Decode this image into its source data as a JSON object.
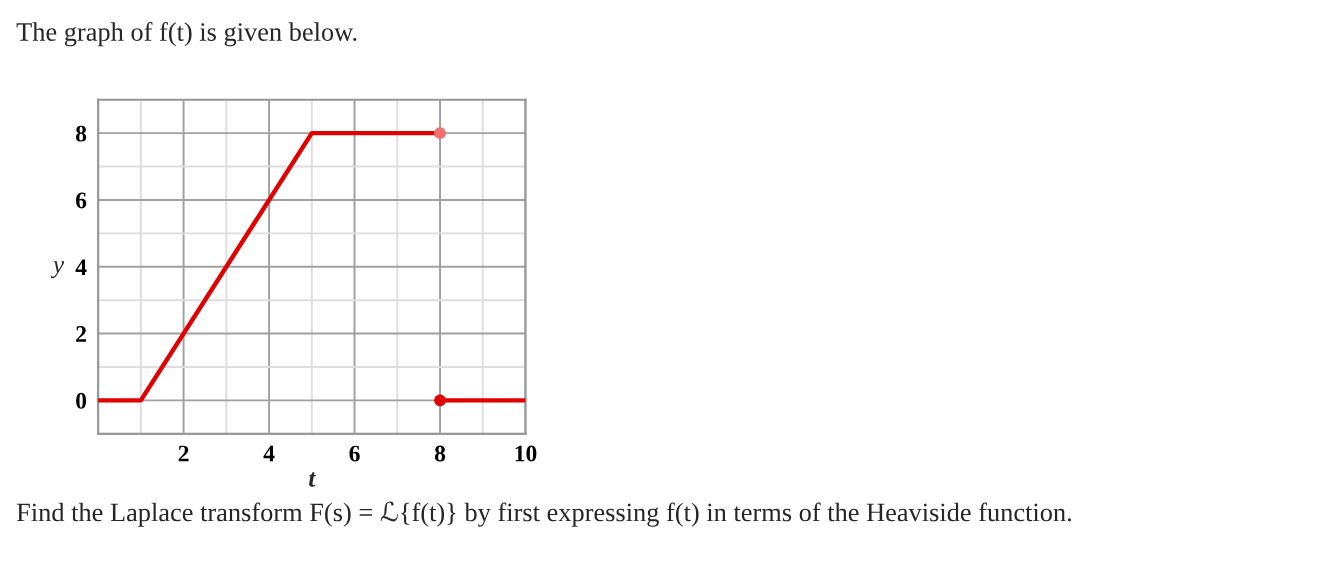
{
  "chart_data": {
    "type": "line",
    "title": "The graph of f(t) is given below.",
    "xlabel": "t",
    "ylabel": "y",
    "annotations": [
      "Find the Laplace transform F(s) = ℒ{f(t)} by first expressing f(t) in terms of the Heaviside function."
    ],
    "series": [
      {
        "type": "line",
        "color": "#e00000",
        "x": [
          0,
          1,
          5,
          8
        ],
        "values": [
          0,
          0,
          8,
          8
        ]
      },
      {
        "type": "line",
        "color": "#e00000",
        "x": [
          8,
          10
        ],
        "values": [
          0,
          0
        ]
      },
      {
        "type": "scatter",
        "color": "#f07070",
        "x": [
          8
        ],
        "values": [
          8
        ],
        "marker": "circle"
      },
      {
        "type": "scatter",
        "color": "#e00000",
        "x": [
          8
        ],
        "values": [
          0
        ],
        "marker": "circle"
      }
    ],
    "xlim": [
      0,
      10
    ],
    "ylim": [
      -1,
      9
    ],
    "xticks": [
      2,
      4,
      6,
      8,
      10
    ],
    "yticks": [
      0,
      2,
      4,
      6,
      8
    ],
    "grid": true
  }
}
